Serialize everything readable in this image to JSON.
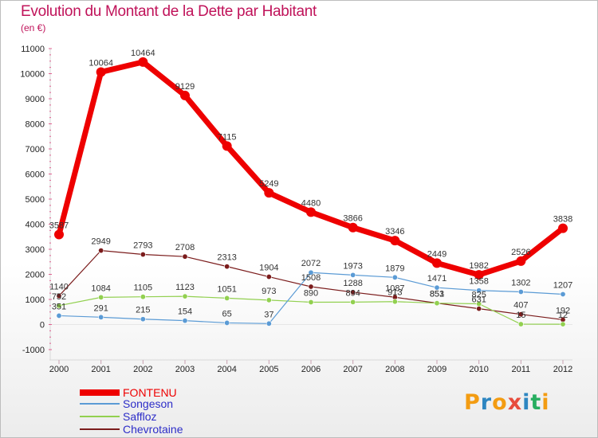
{
  "title": "Evolution du Montant de la Dette par Habitant",
  "subtitle": "(en €)",
  "logo": {
    "text": "Proxiti",
    "colors": [
      "#f39c12",
      "#2e86c1",
      "#f39c12",
      "#e74c3c",
      "#2e86c1",
      "#27ae60",
      "#f39c12"
    ]
  },
  "chart_data": {
    "type": "line",
    "x": [
      "2000",
      "2001",
      "2002",
      "2003",
      "2004",
      "2005",
      "2006",
      "2007",
      "2008",
      "2009",
      "2010",
      "2011",
      "2012"
    ],
    "ylim": [
      -1000,
      11000
    ],
    "yticks": [
      "-1000",
      "0",
      "1000",
      "2000",
      "3000",
      "4000",
      "5000",
      "6000",
      "7000",
      "8000",
      "9000",
      "10000",
      "11000"
    ],
    "grid": false,
    "legend_position": "bottom-left",
    "series": [
      {
        "name": "FONTENU",
        "color": "#ee0000",
        "values": [
          3587,
          10064,
          10464,
          9129,
          7115,
          5249,
          4480,
          3866,
          3346,
          2449,
          1982,
          2526,
          3838
        ],
        "labels": [
          "3587",
          "10064",
          "10464",
          "9129",
          "7115",
          "5249",
          "4480",
          "3866",
          "3346",
          "2449",
          "1982",
          "2526",
          "3838"
        ]
      },
      {
        "name": "Songeson",
        "color": "#5b9bd5",
        "values": [
          351,
          291,
          215,
          154,
          65,
          37,
          2072,
          1973,
          1879,
          1471,
          1358,
          1302,
          1207
        ],
        "labels": [
          "351",
          "291",
          "215",
          "154",
          "65",
          "37",
          "2072",
          "1973",
          "1879",
          "1471",
          "1358",
          "1302",
          "1207"
        ]
      },
      {
        "name": "Saffloz",
        "color": "#92d050",
        "values": [
          752,
          1084,
          1105,
          1123,
          1051,
          973,
          890,
          894,
          913,
          851,
          825,
          15,
          12
        ],
        "labels": [
          "752",
          "1084",
          "1105",
          "1123",
          "1051",
          "973",
          "890",
          "894",
          "913",
          "851",
          "825",
          "15",
          "12"
        ]
      },
      {
        "name": "Chevrotaine",
        "color": "#7b1c1c",
        "values": [
          1140,
          2949,
          2793,
          2708,
          2313,
          1904,
          1508,
          1288,
          1087,
          853,
          631,
          407,
          192
        ],
        "labels": [
          "1140",
          "2949",
          "2793",
          "2708",
          "2313",
          "1904",
          "1508",
          "1288",
          "1087",
          "853",
          "631",
          "407",
          "192"
        ]
      }
    ]
  }
}
